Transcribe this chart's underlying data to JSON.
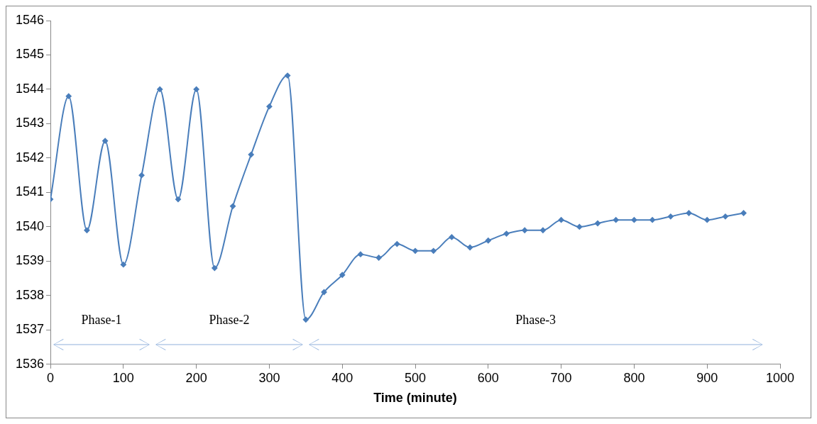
{
  "chart_data": {
    "type": "line",
    "xlabel": "Time (minute)",
    "x": [
      0,
      25,
      50,
      75,
      100,
      125,
      150,
      175,
      200,
      225,
      250,
      275,
      300,
      325,
      350,
      375,
      400,
      425,
      450,
      475,
      500,
      525,
      550,
      575,
      600,
      625,
      650,
      675,
      700,
      725,
      750,
      775,
      800,
      825,
      850,
      875,
      900,
      925,
      950
    ],
    "series": [
      {
        "color": "#4a7ebb",
        "values": [
          1540.8,
          1543.8,
          1539.9,
          1542.5,
          1538.9,
          1541.5,
          1544.0,
          1540.8,
          1544.0,
          1538.8,
          1540.6,
          1542.1,
          1543.5,
          1544.4,
          1537.3,
          1538.1,
          1538.6,
          1539.2,
          1539.1,
          1539.5,
          1539.3,
          1539.3,
          1539.7,
          1539.4,
          1539.6,
          1539.8,
          1539.9,
          1539.9,
          1540.2,
          1540.0,
          1540.1,
          1540.2,
          1540.2,
          1540.2,
          1540.3,
          1540.4,
          1540.2,
          1540.3,
          1540.4
        ]
      }
    ],
    "xlim": [
      0,
      1000
    ],
    "xticks": [
      0,
      100,
      200,
      300,
      400,
      500,
      600,
      700,
      800,
      900,
      1000
    ],
    "ylim": [
      1536,
      1546
    ],
    "yticks": [
      1536,
      1537,
      1538,
      1539,
      1540,
      1541,
      1542,
      1543,
      1544,
      1545,
      1546
    ],
    "annotations": [
      "Phase-1",
      "Phase-2",
      "Phase-3"
    ],
    "marker": "diamond",
    "line_style": "solid",
    "grid": false,
    "legend": false
  }
}
